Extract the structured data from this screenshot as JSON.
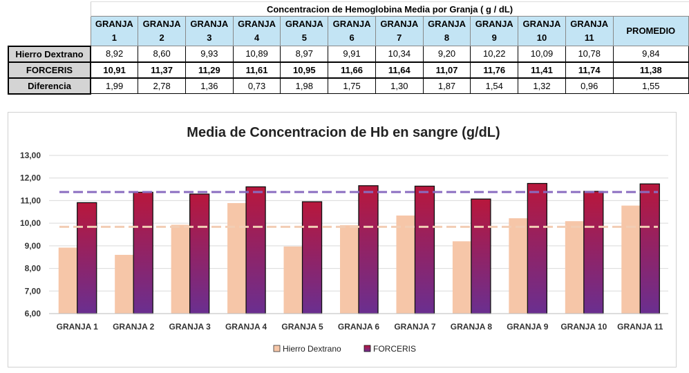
{
  "table": {
    "title": "Concentracion de Hemoglobina Media por Granja ( g / dL)",
    "headers": [
      [
        "GRANJA",
        "1"
      ],
      [
        "GRANJA",
        "2"
      ],
      [
        "GRANJA",
        "3"
      ],
      [
        "GRANJA",
        "4"
      ],
      [
        "GRANJA",
        "5"
      ],
      [
        "GRANJA",
        "6"
      ],
      [
        "GRANJA",
        "7"
      ],
      [
        "GRANJA",
        "8"
      ],
      [
        "GRANJA",
        "9"
      ],
      [
        "GRANJA",
        "10"
      ],
      [
        "GRANJA",
        "11"
      ]
    ],
    "promedio_label": "PROMEDIO",
    "rows": [
      {
        "label": "Hierro Dextrano",
        "values": [
          "8,92",
          "8,60",
          "9,93",
          "10,89",
          "8,97",
          "9,91",
          "10,34",
          "9,20",
          "10,22",
          "10,09",
          "10,78",
          "9,84"
        ]
      },
      {
        "label": "FORCERIS",
        "values": [
          "10,91",
          "11,37",
          "11,29",
          "11,61",
          "10,95",
          "11,66",
          "11,64",
          "11,07",
          "11,76",
          "11,41",
          "11,74",
          "11,38"
        ]
      },
      {
        "label": "Diferencia",
        "values": [
          "1,99",
          "2,78",
          "1,36",
          "0,73",
          "1,98",
          "1,75",
          "1,30",
          "1,87",
          "1,54",
          "1,32",
          "0,96",
          "1,55"
        ]
      }
    ]
  },
  "chart_data": {
    "type": "bar",
    "title": "Media de Concentracion de Hb en sangre (g/dL)",
    "categories": [
      "GRANJA 1",
      "GRANJA 2",
      "GRANJA 3",
      "GRANJA 4",
      "GRANJA 5",
      "GRANJA 6",
      "GRANJA 7",
      "GRANJA 8",
      "GRANJA 9",
      "GRANJA 10",
      "GRANJA 11"
    ],
    "series": [
      {
        "name": "Hierro Dextrano",
        "values": [
          8.92,
          8.6,
          9.93,
          10.89,
          8.97,
          9.91,
          10.34,
          9.2,
          10.22,
          10.09,
          10.78
        ],
        "color": "#f6c6a8",
        "average": 9.84
      },
      {
        "name": "FORCERIS",
        "values": [
          10.91,
          11.37,
          11.29,
          11.61,
          10.95,
          11.66,
          11.64,
          11.07,
          11.76,
          11.41,
          11.74
        ],
        "color_top": "#b8173c",
        "color_bottom": "#6a2f90",
        "average": 11.38
      }
    ],
    "ylim": [
      6,
      13
    ],
    "yticks": [
      "6,00",
      "7,00",
      "8,00",
      "9,00",
      "10,00",
      "11,00",
      "12,00",
      "13,00"
    ],
    "grid": true,
    "legend": "bottom"
  }
}
